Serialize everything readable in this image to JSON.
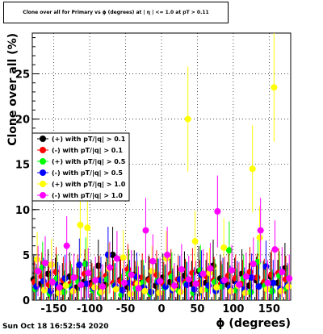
{
  "chart_data": {
    "type": "scatter",
    "title": "Clone  over all for Primary vs ϕ (degrees) at | η | <= 1.0 at pT > 0.11",
    "xlabel": "ϕ (degrees)",
    "ylabel": "Clone  over all (%)",
    "xlim": [
      -180,
      180
    ],
    "ylim": [
      0,
      29.5
    ],
    "xticks": [
      -150,
      -100,
      -50,
      0,
      50,
      100,
      150
    ],
    "yticks": [
      0,
      5,
      10,
      15,
      20,
      25
    ],
    "grid": true,
    "legend_position": "left-middle",
    "series": [
      {
        "name": "(+) with pT/|q| > 0.1",
        "color": "#000000",
        "x": [
          -175,
          -165,
          -155,
          -145,
          -135,
          -125,
          -115,
          -105,
          -95,
          -85,
          -75,
          -65,
          -55,
          -45,
          -35,
          -25,
          -15,
          -5,
          5,
          15,
          25,
          35,
          45,
          55,
          65,
          75,
          85,
          95,
          105,
          115,
          125,
          135,
          145,
          155,
          165,
          175
        ],
        "y": [
          2.3,
          1.8,
          2.9,
          2.1,
          1.6,
          2.6,
          1.4,
          2.0,
          1.9,
          3.8,
          1.7,
          5.0,
          2.2,
          1.5,
          2.8,
          1.9,
          2.3,
          1.6,
          2.5,
          2.0,
          1.4,
          2.7,
          1.8,
          3.2,
          1.9,
          3.8,
          2.4,
          1.7,
          2.1,
          2.9,
          1.6,
          2.2,
          1.8,
          2.6,
          1.9,
          3.5
        ]
      },
      {
        "name": "(-) with pT/|q| > 0.1",
        "color": "#ff0000",
        "x": [
          -175,
          -165,
          -155,
          -145,
          -135,
          -125,
          -115,
          -105,
          -95,
          -85,
          -75,
          -65,
          -55,
          -45,
          -35,
          -25,
          -15,
          -5,
          5,
          15,
          25,
          35,
          45,
          55,
          65,
          75,
          85,
          95,
          105,
          115,
          125,
          135,
          145,
          155,
          165,
          175
        ],
        "y": [
          2.0,
          2.6,
          1.7,
          3.1,
          2.2,
          1.8,
          2.4,
          2.9,
          1.6,
          2.3,
          2.7,
          1.9,
          2.1,
          3.4,
          1.8,
          2.5,
          2.2,
          2.8,
          1.7,
          2.9,
          2.3,
          2.0,
          3.0,
          1.9,
          2.6,
          2.2,
          1.8,
          2.7,
          2.4,
          1.9,
          3.1,
          2.5,
          2.0,
          2.8,
          3.0,
          2.3
        ]
      },
      {
        "name": "(+) with pT/|q| > 0.5",
        "color": "#00ff00",
        "x": [
          -175,
          -165,
          -155,
          -145,
          -135,
          -125,
          -115,
          -105,
          -95,
          -85,
          -75,
          -65,
          -55,
          -45,
          -35,
          -25,
          -15,
          -5,
          5,
          15,
          25,
          35,
          45,
          55,
          65,
          75,
          85,
          95,
          105,
          115,
          125,
          135,
          145,
          155,
          165,
          175
        ],
        "y": [
          1.2,
          3.6,
          0.7,
          2.4,
          0.9,
          1.5,
          2.0,
          4.0,
          1.1,
          0.8,
          2.3,
          1.6,
          0.6,
          2.9,
          1.3,
          1.9,
          0.7,
          2.1,
          1.4,
          2.6,
          1.0,
          1.8,
          0.8,
          3.3,
          1.2,
          2.0,
          1.5,
          5.5,
          1.1,
          2.4,
          0.9,
          4.2,
          1.6,
          1.0,
          2.7,
          1.3
        ]
      },
      {
        "name": "(-) with pT/|q| > 0.5",
        "color": "#0000ff",
        "x": [
          -175,
          -165,
          -155,
          -145,
          -135,
          -125,
          -115,
          -105,
          -95,
          -85,
          -75,
          -65,
          -55,
          -45,
          -35,
          -25,
          -15,
          -5,
          5,
          15,
          25,
          35,
          45,
          55,
          65,
          75,
          85,
          95,
          105,
          115,
          125,
          135,
          145,
          155,
          165,
          175
        ],
        "y": [
          1.5,
          2.1,
          1.0,
          1.7,
          2.4,
          1.2,
          3.9,
          1.8,
          1.3,
          2.2,
          5.0,
          1.6,
          1.1,
          1.9,
          2.6,
          1.4,
          0.9,
          2.0,
          1.5,
          1.1,
          2.3,
          1.7,
          1.2,
          2.8,
          1.6,
          1.0,
          2.1,
          1.4,
          1.8,
          1.2,
          2.5,
          1.5,
          3.7,
          1.9,
          1.3,
          1.6
        ]
      },
      {
        "name": "(+) with pT/|q| > 1.0",
        "color": "#ffff00",
        "x": [
          -175,
          -165,
          -155,
          -145,
          -135,
          -125,
          -115,
          -105,
          -95,
          -85,
          -75,
          -65,
          -55,
          -45,
          -35,
          -25,
          -15,
          -5,
          5,
          15,
          25,
          35,
          45,
          55,
          65,
          75,
          85,
          95,
          105,
          115,
          125,
          135,
          145,
          155,
          165,
          175
        ],
        "y": [
          4.5,
          1.1,
          3.9,
          0.8,
          1.6,
          1.0,
          8.3,
          8.0,
          1.4,
          0.9,
          3.5,
          1.2,
          4.7,
          0.7,
          1.8,
          1.0,
          3.2,
          0.8,
          4.6,
          1.3,
          0.9,
          20.0,
          6.5,
          1.1,
          3.0,
          1.4,
          5.8,
          1.0,
          1.6,
          0.8,
          14.5,
          6.9,
          1.2,
          23.5,
          1.0,
          1.5
        ]
      },
      {
        "name": "(-) with pT/|q| > 1.0",
        "color": "#ff00ff",
        "x": [
          -175,
          -165,
          -155,
          -145,
          -135,
          -125,
          -115,
          -105,
          -95,
          -85,
          -75,
          -65,
          -55,
          -45,
          -35,
          -25,
          -15,
          -5,
          5,
          15,
          25,
          35,
          45,
          55,
          65,
          75,
          85,
          95,
          105,
          115,
          125,
          135,
          145,
          155,
          165,
          175
        ],
        "y": [
          3.2,
          4.1,
          2.0,
          1.4,
          6.0,
          2.5,
          1.7,
          3.0,
          2.2,
          1.5,
          3.6,
          4.6,
          1.9,
          2.8,
          1.3,
          7.7,
          4.3,
          2.1,
          5.0,
          1.6,
          3.4,
          2.3,
          1.8,
          2.9,
          3.5,
          9.8,
          2.2,
          3.3,
          1.7,
          2.6,
          4.0,
          7.7,
          1.9,
          5.6,
          3.1,
          2.4
        ]
      }
    ]
  },
  "footer_text": "Sun Oct 18 16:52:54 2020"
}
